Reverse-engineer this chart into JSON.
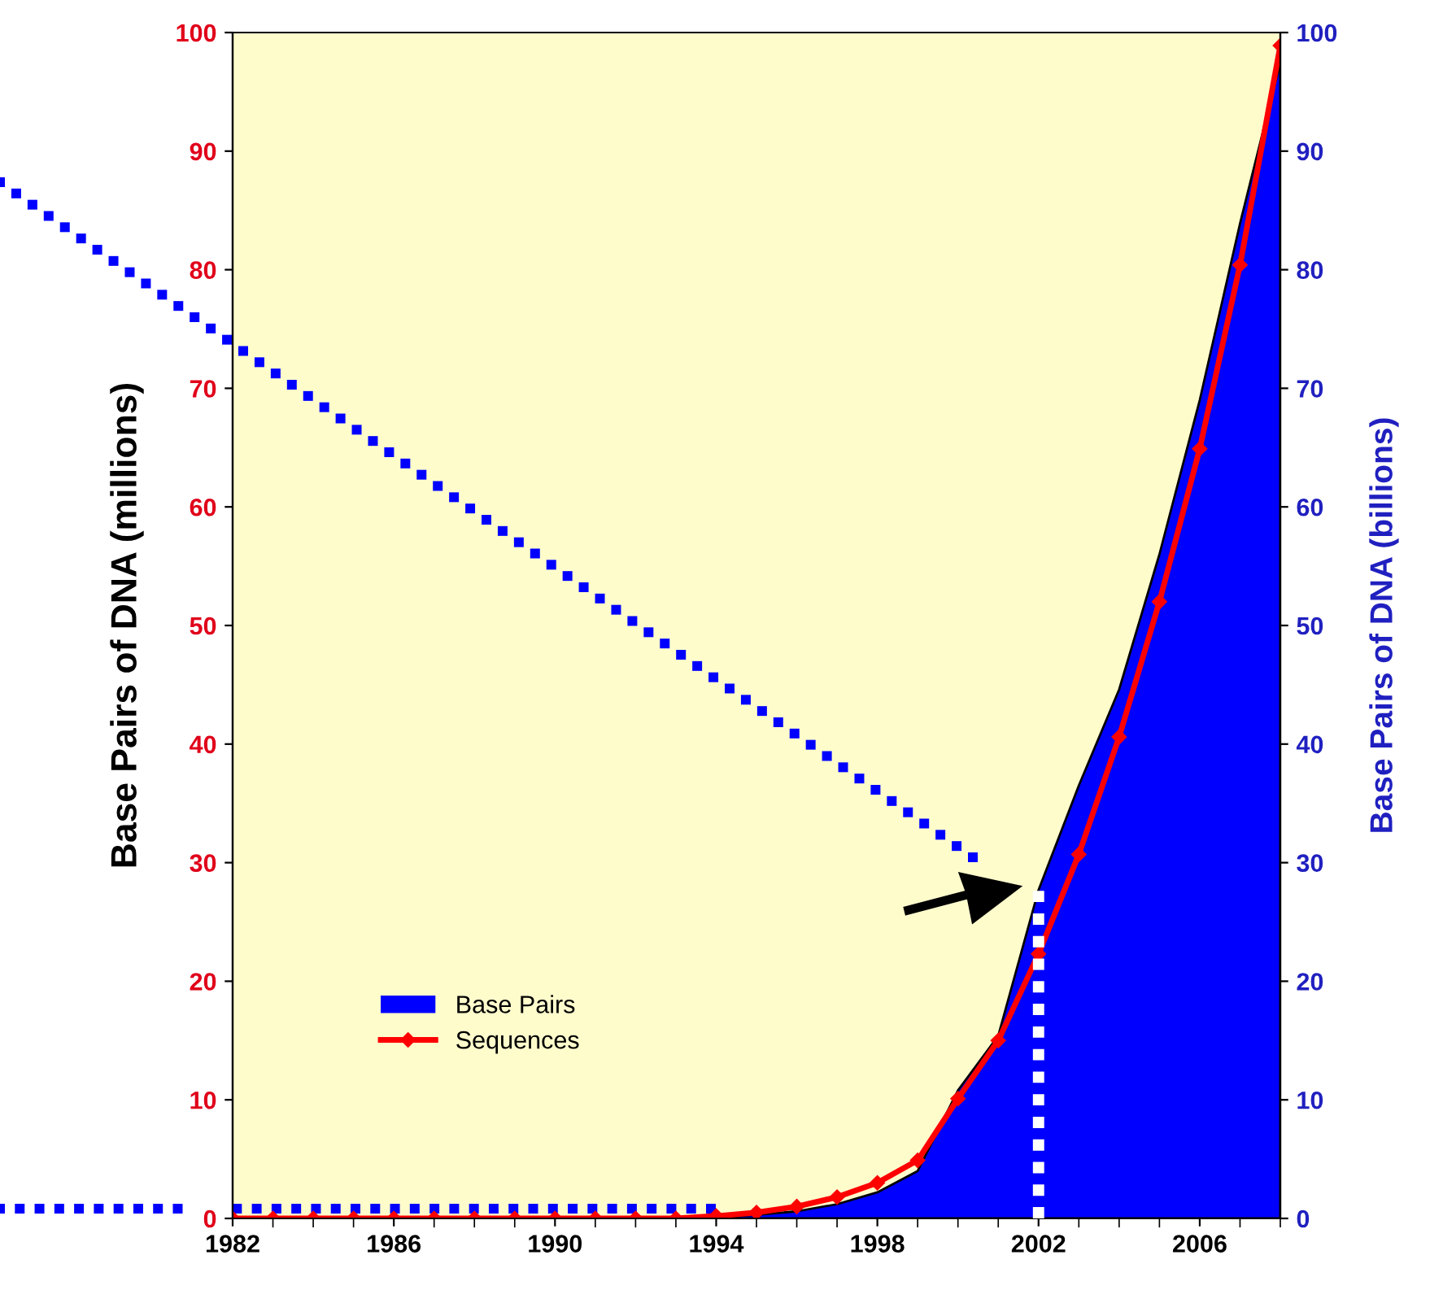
{
  "chart_data": {
    "type": "line",
    "x": [
      1982,
      1983,
      1984,
      1985,
      1986,
      1987,
      1988,
      1989,
      1990,
      1991,
      1992,
      1993,
      1994,
      1995,
      1996,
      1997,
      1998,
      1999,
      2000,
      2001,
      2002,
      2003,
      2004,
      2005,
      2006,
      2007,
      2008
    ],
    "series": [
      {
        "name": "Base Pairs",
        "type": "area",
        "axis": "y2",
        "color": "#0000ff",
        "values": [
          0,
          0,
          0,
          0,
          0,
          0,
          0,
          0,
          0,
          0,
          0,
          0,
          0.1,
          0.3,
          0.6,
          1.2,
          2.2,
          4.0,
          10.8,
          15.4,
          27.7,
          36.5,
          44.6,
          56.0,
          69.0,
          83.9,
          97.5
        ]
      },
      {
        "name": "Sequences",
        "axis": "y",
        "color": "#ff0000",
        "marker": "diamond",
        "values": [
          0,
          0,
          0,
          0,
          0,
          0,
          0,
          0,
          0,
          0,
          0,
          0,
          0.2,
          0.5,
          1.0,
          1.8,
          3.0,
          4.9,
          10.1,
          15.0,
          22.3,
          30.7,
          40.6,
          52.0,
          64.9,
          80.4,
          98.9
        ]
      }
    ],
    "ylabel": "Base Pairs of DNA (millions)",
    "y2label": "Base Pairs of DNA (billions)",
    "xlim": [
      1982,
      2008
    ],
    "xticks": [
      1982,
      1986,
      1990,
      1994,
      1998,
      2002,
      2006
    ],
    "ylim": [
      0,
      100
    ],
    "yticks": [
      0,
      10,
      20,
      30,
      40,
      50,
      60,
      70,
      80,
      90,
      100
    ],
    "y2lim": [
      0,
      100
    ],
    "y2ticks": [
      0,
      10,
      20,
      30,
      40,
      50,
      60,
      70,
      80,
      90,
      100
    ],
    "ref_lines": [
      {
        "axis": "x",
        "value": 2002,
        "color": "#ffffff",
        "line_style": "dotted"
      }
    ],
    "grid": false,
    "legend": "lower left"
  }
}
